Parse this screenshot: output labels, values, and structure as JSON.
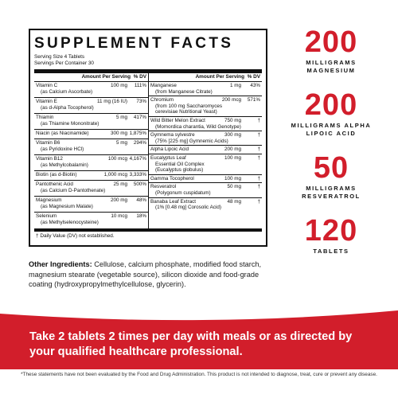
{
  "facts": {
    "title": "SUPPLEMENT FACTS",
    "serving_size": "Serving Size 4 Tablets",
    "servings_per_container": "Servings Per Container 30",
    "header_amount": "Amount Per Serving",
    "header_dv": "% DV",
    "left": [
      {
        "name": "Vitamin C",
        "amount": "100 mg",
        "dv": "111%",
        "sub": "(as Calcium Ascorbate)"
      },
      {
        "name": "Vitamin E",
        "amount": "11 mg (16 IU)",
        "dv": "73%",
        "sub": "(as d-Alpha Tocopherol)"
      },
      {
        "name": "Thiamin",
        "amount": "5 mg",
        "dv": "417%",
        "sub": "(as Thiamine Mononitrate)"
      },
      {
        "name": "Niacin (as Niacinamide)",
        "amount": "300 mg",
        "dv": "1,875%",
        "sub": ""
      },
      {
        "name": "Vitamin B6",
        "amount": "5 mg",
        "dv": "294%",
        "sub": "(as Pyridoxine HCl)"
      },
      {
        "name": "Vitamin B12",
        "amount": "100 mcg",
        "dv": "4,167%",
        "sub": "(as Methylcobalamin)"
      },
      {
        "name": "Biotin (as d-Biotin)",
        "amount": "1,000 mcg",
        "dv": "3,333%",
        "sub": ""
      },
      {
        "name": "Pantothenic Acid",
        "amount": "25 mg",
        "dv": "500%",
        "sub": "(as Calcium D-Pantothenate)"
      },
      {
        "name": "Magnesium",
        "amount": "200 mg",
        "dv": "48%",
        "sub": "(as Magnesium Malate)"
      },
      {
        "name": "Selenium",
        "amount": "10 mcg",
        "dv": "18%",
        "sub": "(as Methylselenocysteine)"
      }
    ],
    "right": [
      {
        "name": "Manganese",
        "amount": "1 mg",
        "dv": "43%",
        "sub": "(from Manganese Citrate)",
        "sub2": ""
      },
      {
        "name": "Chromium",
        "amount": "200 mcg",
        "dv": "571%",
        "sub": "(from 100 mg Saccharomyces",
        "sub2": "cerevisiae Nutritional Yeast)"
      },
      {
        "name": "Wild Bitter Melon Extract",
        "amount": "750 mg",
        "dv": "†",
        "sub": "(Momordica charantia, Wild Genotype)",
        "sub2": ""
      },
      {
        "name": "Gymnema sylvestre",
        "amount": "300 mg",
        "dv": "†",
        "sub": "(75% [225 mg] Gymnemic Acids)",
        "sub2": ""
      },
      {
        "name": "Alpha Lipoic Acid",
        "amount": "200 mg",
        "dv": "†",
        "sub": "",
        "sub2": ""
      },
      {
        "name": "Eucalyptus Leaf",
        "amount": "100 mg",
        "dv": "†",
        "sub": "Essential Oil Complex",
        "sub2": "(Eucalyptus globulus)"
      },
      {
        "name": "Gamma Tocopherol",
        "amount": "100 mg",
        "dv": "†",
        "sub": "",
        "sub2": ""
      },
      {
        "name": "Resveratrol",
        "amount": "50 mg",
        "dv": "†",
        "sub": "(Polygonum cuspidatum)",
        "sub2": ""
      },
      {
        "name": "Banaba Leaf Extract",
        "amount": "48 mg",
        "dv": "†",
        "sub": "(1% [0.48 mg] Corosolic Acid)",
        "sub2": ""
      }
    ],
    "footnote": "† Daily Value (DV) not established."
  },
  "other_ingredients": {
    "label": "Other Ingredients:",
    "text": "Cellulose, calcium phosphate, modified food starch, magnesium stearate (vegetable source), silicon dioxide and food-grade coating (hydroxypropylmethylcellulose, glycerin)."
  },
  "stats": [
    {
      "value": "200",
      "line1": "MILLIGRAMS",
      "line2": "MAGNESIUM"
    },
    {
      "value": "200",
      "line1": "MILLIGRAMS ALPHA",
      "line2": "LIPOIC ACID"
    },
    {
      "value": "50",
      "line1": "MILLIGRAMS",
      "line2": "RESVERATROL"
    },
    {
      "value": "120",
      "line1": "TABLETS",
      "line2": ""
    }
  ],
  "banner": {
    "text": "Take 2 tablets 2 times per day with meals or as directed by your qualified healthcare professional."
  },
  "disclaimer": "*These statements have not been evaluated by the Food and Drug Administration. This product is not intended to diagnose, treat, cure or prevent any disease.",
  "colors": {
    "accent": "#d21e2b",
    "text": "#111111",
    "background": "#ffffff"
  }
}
